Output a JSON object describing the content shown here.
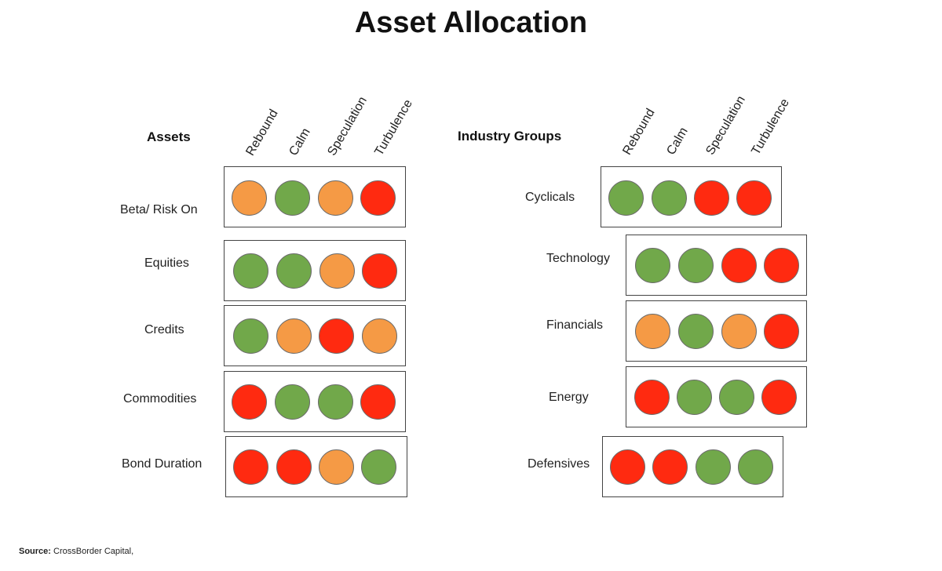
{
  "title": "Asset Allocation",
  "colors": {
    "green": "#71a84a",
    "orange": "#f59a45",
    "red": "#ff2a10"
  },
  "columns": [
    "Rebound",
    "Calm",
    "Speculation",
    "Turbulence"
  ],
  "assets": {
    "heading": "Assets",
    "rows": [
      {
        "label": "Beta/ Risk On",
        "signals": [
          "orange",
          "green",
          "orange",
          "red"
        ]
      },
      {
        "label": "Equities",
        "signals": [
          "green",
          "green",
          "orange",
          "red"
        ]
      },
      {
        "label": "Credits",
        "signals": [
          "green",
          "orange",
          "red",
          "orange"
        ]
      },
      {
        "label": "Commodities",
        "signals": [
          "red",
          "green",
          "green",
          "red"
        ]
      },
      {
        "label": "Bond Duration",
        "signals": [
          "red",
          "red",
          "orange",
          "green"
        ]
      }
    ]
  },
  "industry": {
    "heading": "Industry Groups",
    "rows": [
      {
        "label": "Cyclicals",
        "signals": [
          "green",
          "green",
          "red",
          "red"
        ]
      },
      {
        "label": "Technology",
        "signals": [
          "green",
          "green",
          "red",
          "red"
        ]
      },
      {
        "label": "Financials",
        "signals": [
          "orange",
          "green",
          "orange",
          "red"
        ]
      },
      {
        "label": "Energy",
        "signals": [
          "red",
          "green",
          "green",
          "red"
        ]
      },
      {
        "label": "Defensives",
        "signals": [
          "red",
          "red",
          "green",
          "green"
        ]
      }
    ]
  },
  "source": {
    "label": "Source:",
    "text": "CrossBorder Capital,"
  }
}
